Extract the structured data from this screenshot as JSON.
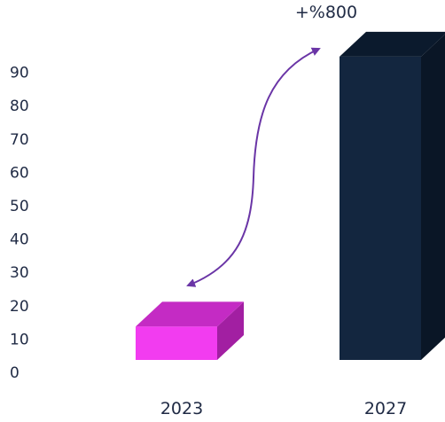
{
  "chart_data": {
    "type": "bar",
    "categories": [
      "2023",
      "2027"
    ],
    "values": [
      10,
      91
    ],
    "title": "",
    "xlabel": "",
    "ylabel": "",
    "ylim": [
      0,
      90
    ],
    "yticks": [
      0,
      10,
      20,
      30,
      40,
      50,
      60,
      70,
      80,
      90
    ],
    "grid": false,
    "legend": "none",
    "bar_style": "3d",
    "colors": {
      "2023": {
        "front": "#f23cf0",
        "top": "#c42bc4",
        "side": "#a21fa2"
      },
      "2027": {
        "front": "#13263f",
        "top": "#0b1a2d",
        "side": "#0a1626"
      }
    },
    "axis_text_color": "#1f2a44",
    "annotation": {
      "text": "+%800",
      "arrow_color": "#6a35a6",
      "arrow_style": "double-headed-curve",
      "from_category": "2023",
      "to_category": "2027"
    }
  }
}
